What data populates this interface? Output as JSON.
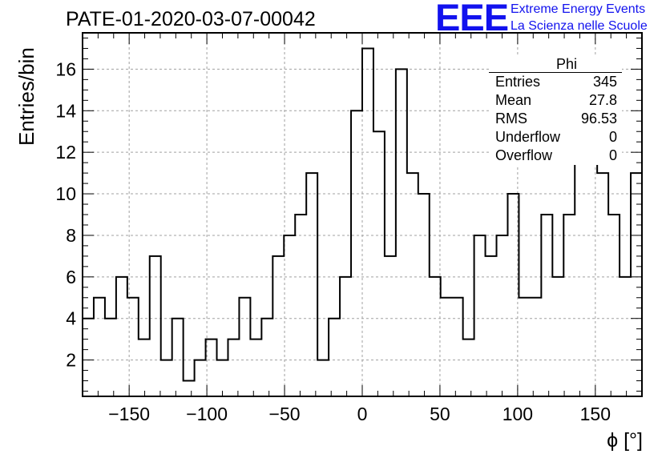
{
  "title": "PATE-01-2020-03-07-00042",
  "brand": {
    "logo": "EEE",
    "line1": "Extreme Energy Events",
    "line2": "La Scienza nelle Scuole",
    "color": "#1212ee"
  },
  "chart_data": {
    "type": "histogram",
    "xlabel": "ϕ [°]",
    "ylabel": "Entries/bin",
    "xlim": [
      -180,
      180
    ],
    "ylim": [
      0.25,
      17.75
    ],
    "bin_width": 7.2,
    "x_ticks": [
      -150,
      -100,
      -50,
      0,
      50,
      100,
      150
    ],
    "y_ticks": [
      2,
      4,
      6,
      8,
      10,
      12,
      14,
      16
    ],
    "grid": true,
    "values": [
      4,
      5,
      4,
      6,
      5,
      3,
      7,
      2,
      4,
      1,
      2,
      3,
      2,
      3,
      5,
      3,
      4,
      7,
      8,
      9,
      11,
      2,
      4,
      6,
      14,
      17,
      13,
      7,
      16,
      11,
      10,
      6,
      5,
      5,
      3,
      8,
      7,
      8,
      10,
      5,
      5,
      9,
      6,
      9,
      12,
      12,
      11,
      9,
      6,
      11
    ],
    "stats": {
      "title": "Phi",
      "rows": [
        {
          "label": "Entries",
          "value": "345"
        },
        {
          "label": "Mean",
          "value": "27.8"
        },
        {
          "label": "RMS",
          "value": "96.53"
        },
        {
          "label": "Underflow",
          "value": "0"
        },
        {
          "label": "Overflow",
          "value": "0"
        }
      ]
    }
  }
}
